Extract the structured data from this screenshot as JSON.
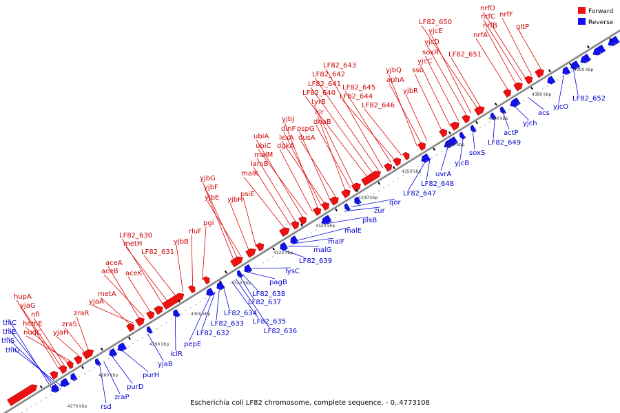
{
  "caption": "Escherichia coli LF82 chromosome, complete sequence. - 0..4773108",
  "legend": [
    {
      "label": "Forward",
      "color": "#ee1111"
    },
    {
      "label": "Reverse",
      "color": "#1111ee"
    }
  ],
  "colors": {
    "forward": "#ee1111",
    "reverse": "#1111ee",
    "axis": "#999999",
    "leader_forward": "#dd0000",
    "leader_reverse": "#0000dd"
  },
  "ticks": [
    "4270 kbp",
    "4280 kbp",
    "4290 kbp",
    "4300 kbp",
    "4310 kbp",
    "4320 kbp",
    "4330 kbp",
    "4340 kbp",
    "4350 kbp",
    "4360 kbp",
    "4370 kbp",
    "4380 kbp",
    "4390 kbp"
  ],
  "forward_labels": [
    "hupA",
    "yjaG",
    "nfi",
    "hemE",
    "nudC",
    "yjaH",
    "zraS",
    "zraR",
    "metA",
    "yjaA",
    "aceA",
    "aceB",
    "aceK",
    "LF82_630",
    "metH",
    "LF82_631",
    "yjbB",
    "rluF",
    "pgi",
    "yjbG",
    "yjbF",
    "yjbE",
    "yjbH",
    "psiE",
    "malK",
    "lamB",
    "malM",
    "ubiA",
    "ubiC",
    "dgkA",
    "yjbJ",
    "dinF",
    "lexA",
    "pspG",
    "dusA",
    "alr",
    "dnaB",
    "tyrB",
    "LF82_640",
    "LF82_641",
    "LF82_642",
    "LF82_643",
    "LF82_645",
    "LF82_644",
    "LF82_646",
    "yjbQ",
    "aphA",
    "yjbR",
    "ssb",
    "yjcC",
    "soxR",
    "yjcD",
    "yjcE",
    "LF82_650",
    "LF82_651",
    "nrfA",
    "nrfB",
    "nrfC",
    "nrfD",
    "nrfF",
    "gltP"
  ],
  "reverse_labels": [
    "thiC",
    "thiE",
    "thiS",
    "thiG",
    "rsd",
    "zraP",
    "purD",
    "purH",
    "yjaB",
    "iclR",
    "pepE",
    "LF82_632",
    "LF82_633",
    "LF82_634",
    "LF82_635",
    "LF82_636",
    "LF82_637",
    "LF82_638",
    "pagB",
    "lysC",
    "LF82_639",
    "malG",
    "malF",
    "malE",
    "plsB",
    "zur",
    "qor",
    "LF82_647",
    "LF82_648",
    "uvrA",
    "yjcB",
    "soxS",
    "LF82_649",
    "actP",
    "yjch",
    "acs",
    "yjcO",
    "LF82_652"
  ]
}
